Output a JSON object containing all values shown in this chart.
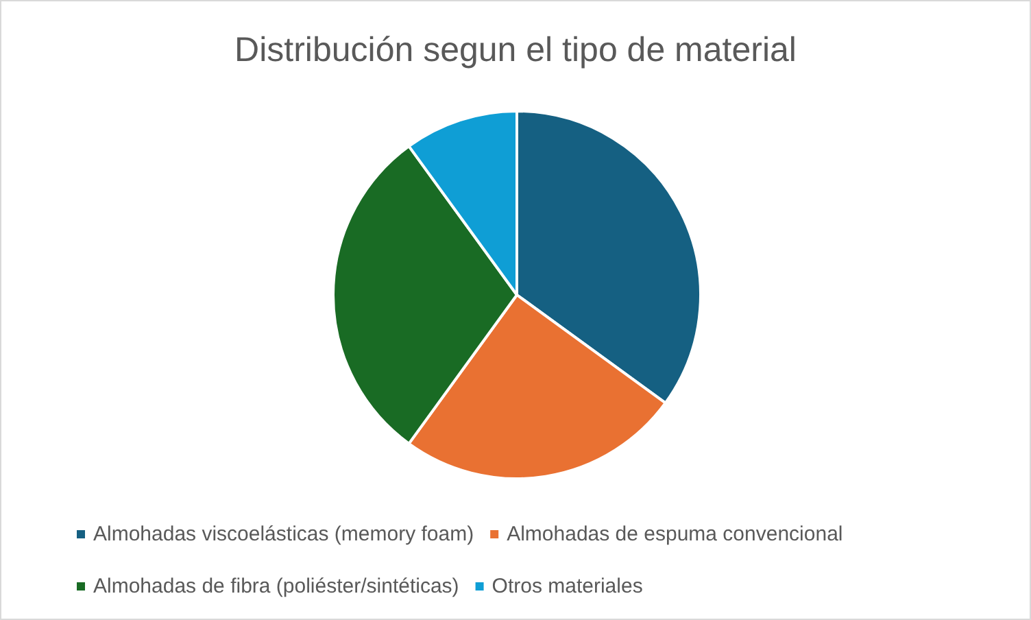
{
  "chart_data": {
    "type": "pie",
    "title": "Distribución segun el tipo de material",
    "categories": [
      "Almohadas viscoelásticas (memory foam)",
      "Almohadas de espuma convencional",
      "Almohadas de fibra (poliéster/sintéticas)",
      "Otros materiales"
    ],
    "values": [
      35,
      25,
      30,
      10
    ],
    "colors": [
      "#156082",
      "#e97132",
      "#196b24",
      "#0f9ed5"
    ],
    "legend": "bottom"
  }
}
